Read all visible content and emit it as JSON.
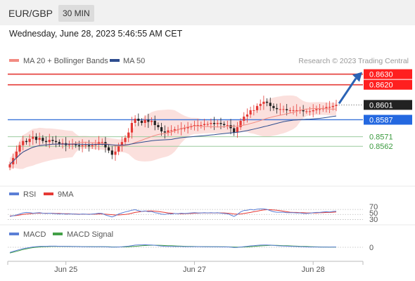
{
  "header": {
    "pair": "EUR/GBP",
    "timeframe": "30 MIN"
  },
  "datetime": "Wednesday, June 28, 2023 5:46:55 AM CET",
  "copyright": "Research © 2023 Trading Central",
  "colors": {
    "support": "#43a047",
    "resistance": "#e53935",
    "pivot": "#3a73d9",
    "bollinger": "#f8c6c1",
    "ma50": "#2e4d8f",
    "rsi": "#5b7fd6",
    "macd": "#5b7fd6",
    "signal": "#43a047",
    "bull": "#e53935",
    "bear": "#222222",
    "arrow": "#2a63b5"
  },
  "chart_data": [
    {
      "type": "candlestick",
      "legend": [
        {
          "name": "MA 20 + Bollinger Bands"
        },
        {
          "name": "MA 50"
        }
      ],
      "x_ticks": [
        "Jun 25",
        "Jun 27",
        "Jun 28"
      ],
      "ylim": [
        0.8535,
        0.8635
      ],
      "levels": [
        {
          "label": "0.8630",
          "value": 0.863,
          "kind": "resistance"
        },
        {
          "label": "0.8620",
          "value": 0.862,
          "kind": "resistance"
        },
        {
          "label": "0.8601",
          "value": 0.8601,
          "kind": "last"
        },
        {
          "label": "0.8587",
          "value": 0.8587,
          "kind": "pivot"
        },
        {
          "label": "0.8571",
          "value": 0.8571,
          "kind": "support"
        },
        {
          "label": "0.8562",
          "value": 0.8562,
          "kind": "support"
        }
      ],
      "close": [
        0.8545,
        0.8551,
        0.8557,
        0.8563,
        0.8567,
        0.8566,
        0.8569,
        0.8571,
        0.8568,
        0.857,
        0.8567,
        0.8566,
        0.8568,
        0.8567,
        0.8566,
        0.8564,
        0.8565,
        0.8563,
        0.8564,
        0.8564,
        0.8563,
        0.8562,
        0.8563,
        0.8563,
        0.8562,
        0.8563,
        0.8564,
        0.8566,
        0.8566,
        0.8561,
        0.8558,
        0.8554,
        0.8557,
        0.8562,
        0.8566,
        0.857,
        0.8575,
        0.8584,
        0.8588,
        0.8586,
        0.8584,
        0.8587,
        0.8585,
        0.8586,
        0.8582,
        0.858,
        0.8576,
        0.8575,
        0.8577,
        0.8577,
        0.8578,
        0.8578,
        0.8579,
        0.8579,
        0.858,
        0.8581,
        0.8582,
        0.8582,
        0.8582,
        0.8583,
        0.8583,
        0.8584,
        0.8583,
        0.8584,
        0.8583,
        0.8582,
        0.8582,
        0.8579,
        0.8575,
        0.858,
        0.8586,
        0.859,
        0.8592,
        0.8596,
        0.8596,
        0.86,
        0.8602,
        0.8604,
        0.8603,
        0.86,
        0.8598,
        0.8597,
        0.8597,
        0.8597,
        0.8596,
        0.8596,
        0.8596,
        0.8596,
        0.8596,
        0.8595,
        0.8595,
        0.8595,
        0.8596,
        0.8597,
        0.8597,
        0.8598,
        0.8599,
        0.8599,
        0.86,
        0.8601
      ]
    },
    {
      "type": "line",
      "legend": [
        {
          "name": "RSI"
        },
        {
          "name": "9MA"
        }
      ],
      "y_ticks": [
        "70",
        "50",
        "30"
      ],
      "ylim": [
        0,
        100
      ],
      "rsi": [
        42,
        45,
        48,
        52,
        56,
        58,
        57,
        55,
        56,
        57,
        55,
        54,
        55,
        54,
        53,
        52,
        53,
        51,
        52,
        52,
        51,
        50,
        52,
        51,
        50,
        52,
        53,
        55,
        54,
        48,
        44,
        40,
        45,
        52,
        56,
        60,
        63,
        67,
        69,
        65,
        62,
        64,
        61,
        62,
        57,
        55,
        51,
        50,
        53,
        52,
        54,
        53,
        55,
        54,
        55,
        56,
        57,
        56,
        56,
        57,
        56,
        57,
        56,
        57,
        55,
        54,
        53,
        48,
        42,
        50,
        60,
        66,
        67,
        70,
        68,
        71,
        72,
        72,
        70,
        65,
        61,
        59,
        59,
        59,
        57,
        57,
        57,
        56,
        56,
        54,
        54,
        55,
        57,
        58,
        58,
        60,
        61,
        60,
        62,
        63
      ],
      "ma9": [
        44,
        45,
        46,
        48,
        50,
        52,
        53,
        54,
        55,
        55,
        55,
        55,
        55,
        55,
        54,
        54,
        53,
        53,
        53,
        52,
        52,
        51,
        51,
        51,
        51,
        51,
        51,
        52,
        52,
        51,
        50,
        49,
        48,
        48,
        49,
        50,
        52,
        55,
        58,
        60,
        62,
        63,
        64,
        64,
        63,
        62,
        60,
        58,
        56,
        55,
        54,
        53,
        53,
        53,
        54,
        54,
        55,
        55,
        56,
        56,
        56,
        56,
        56,
        56,
        56,
        56,
        55,
        54,
        52,
        51,
        52,
        54,
        56,
        58,
        61,
        63,
        66,
        68,
        69,
        69,
        68,
        67,
        65,
        63,
        61,
        59,
        58,
        58,
        57,
        57,
        56,
        56,
        56,
        56,
        57,
        57,
        58,
        58,
        59,
        60
      ]
    },
    {
      "type": "line",
      "legend": [
        {
          "name": "MACD"
        },
        {
          "name": "MACD Signal"
        }
      ],
      "y_ticks": [
        "0"
      ],
      "x_ticks": [
        "Jun 25",
        "Jun 27",
        "Jun 28"
      ],
      "ylim": [
        -0.001,
        0.001
      ],
      "macd": [
        -0.00082,
        -0.00066,
        -0.0005,
        -0.00036,
        -0.00022,
        -0.00012,
        -4e-05,
        6e-05,
        0.0001,
        0.00014,
        0.00016,
        0.00016,
        0.00018,
        0.00018,
        0.00018,
        0.00016,
        0.00016,
        0.00014,
        0.00014,
        0.00012,
        0.00012,
        0.0001,
        0.0001,
        0.0001,
        8e-05,
        8e-05,
        8e-05,
        0.0001,
        0.0001,
        8e-05,
        4e-05,
        2e-05,
        2e-05,
        4e-05,
        8e-05,
        0.00012,
        0.00018,
        0.00026,
        0.00034,
        0.00038,
        0.00038,
        0.0004,
        0.00038,
        0.00036,
        0.00032,
        0.00026,
        0.0002,
        0.00016,
        0.00014,
        0.00014,
        0.00012,
        0.00012,
        0.00012,
        0.0001,
        0.0001,
        0.0001,
        0.0001,
        0.0001,
        0.0001,
        8e-05,
        8e-05,
        8e-05,
        8e-05,
        8e-05,
        6e-05,
        6e-05,
        6e-05,
        2e-05,
        -4e-05,
        -2e-05,
        4e-05,
        0.0001,
        0.00016,
        0.00022,
        0.00026,
        0.0003,
        0.00034,
        0.00036,
        0.00036,
        0.00034,
        0.0003,
        0.00026,
        0.00022,
        0.0002,
        0.00018,
        0.00016,
        0.00014,
        0.00012,
        0.0001,
        8e-05,
        6e-05,
        4e-05,
        4e-05,
        4e-05,
        2e-05,
        2e-05,
        2e-05,
        2e-05,
        4e-05,
        4e-05
      ],
      "signal": [
        -0.0009,
        -0.00078,
        -0.00064,
        -0.0005,
        -0.00036,
        -0.00024,
        -0.00014,
        -6e-05,
        0.0,
        4e-05,
        8e-05,
        0.0001,
        0.00012,
        0.00014,
        0.00014,
        0.00014,
        0.00014,
        0.00014,
        0.00014,
        0.00012,
        0.00012,
        0.00012,
        0.0001,
        0.0001,
        0.0001,
        0.0001,
        8e-05,
        8e-05,
        8e-05,
        8e-05,
        8e-05,
        6e-05,
        6e-05,
        6e-05,
        6e-05,
        6e-05,
        8e-05,
        0.00012,
        0.00016,
        0.0002,
        0.00024,
        0.00028,
        0.0003,
        0.00032,
        0.00032,
        0.00032,
        0.0003,
        0.00028,
        0.00026,
        0.00024,
        0.00022,
        0.0002,
        0.00018,
        0.00016,
        0.00014,
        0.00013,
        0.00012,
        0.00011,
        0.0001,
        0.0001,
        0.0001,
        9e-05,
        9e-05,
        8e-05,
        8e-05,
        8e-05,
        7e-05,
        6e-05,
        4e-05,
        2e-05,
        2e-05,
        4e-05,
        6e-05,
        0.0001,
        0.00014,
        0.00018,
        0.00022,
        0.00026,
        0.00028,
        0.0003,
        0.0003,
        0.0003,
        0.00028,
        0.00026,
        0.00024,
        0.00022,
        0.0002,
        0.00018,
        0.00016,
        0.00014,
        0.00012,
        0.0001,
        8e-05,
        7e-05,
        6e-05,
        5e-05,
        4e-05,
        3e-05,
        3e-05,
        3e-05
      ]
    }
  ]
}
